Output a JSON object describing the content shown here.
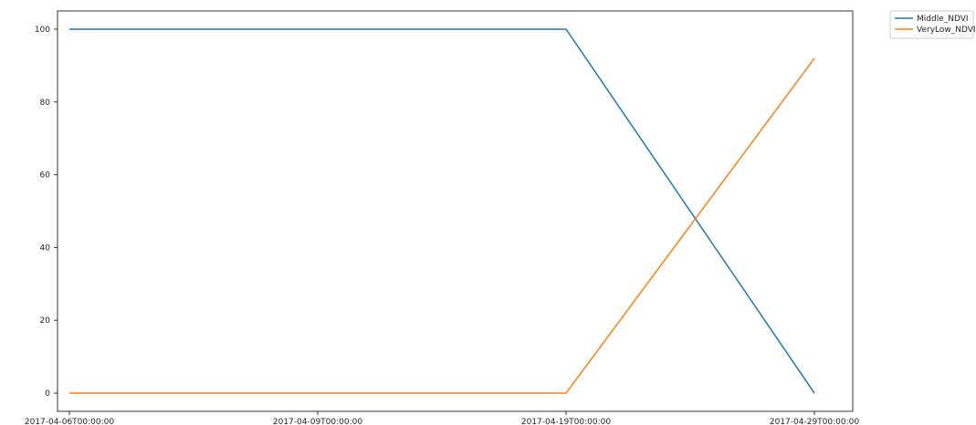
{
  "chart_data": {
    "type": "line",
    "categories": [
      "2017-04-06T00:00:00",
      "2017-04-09T00:00:00",
      "2017-04-19T00:00:00",
      "2017-04-29T00:00:00"
    ],
    "series": [
      {
        "name": "Middle_NDVI",
        "color": "#1f77b4",
        "values": [
          100,
          100,
          100,
          0
        ]
      },
      {
        "name": "VeryLow_NDVI",
        "color": "#ff7f0e",
        "values": [
          0,
          0,
          0,
          92
        ]
      }
    ],
    "ylim": [
      -5,
      105
    ],
    "yticks": [
      0,
      20,
      40,
      60,
      80,
      100
    ],
    "grid": false,
    "legend_position": "outside-top-right"
  }
}
